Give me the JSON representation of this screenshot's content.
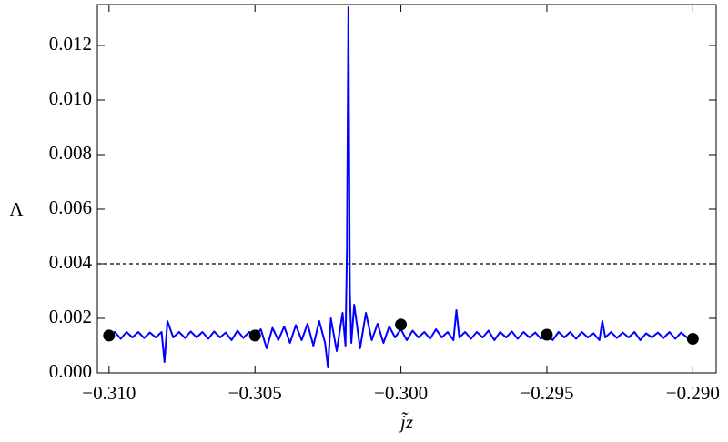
{
  "chart_data": {
    "type": "line",
    "x_label": "j̃z",
    "y_label": "Λ",
    "xlim": [
      -0.3104,
      -0.2892
    ],
    "ylim": [
      0,
      0.0135
    ],
    "xticks": [
      {
        "value": -0.31,
        "label": "−0.310"
      },
      {
        "value": -0.305,
        "label": "−0.305"
      },
      {
        "value": -0.3,
        "label": "−0.300"
      },
      {
        "value": -0.295,
        "label": "−0.295"
      },
      {
        "value": -0.29,
        "label": "−0.290"
      }
    ],
    "yticks": [
      {
        "value": 0,
        "label": "0.000"
      },
      {
        "value": 0.002,
        "label": "0.002"
      },
      {
        "value": 0.004,
        "label": "0.004"
      },
      {
        "value": 0.006,
        "label": "0.006"
      },
      {
        "value": 0.008,
        "label": "0.008"
      },
      {
        "value": 0.01,
        "label": "0.010"
      },
      {
        "value": 0.012,
        "label": "0.012"
      }
    ],
    "reference_line": {
      "y": 0.004,
      "color": "#000000"
    },
    "x": [
      -0.31,
      -0.3098,
      -0.3096,
      -0.3094,
      -0.3092,
      -0.309,
      -0.3088,
      -0.3086,
      -0.3084,
      -0.3082,
      -0.3081,
      -0.308,
      -0.3078,
      -0.3076,
      -0.3074,
      -0.3072,
      -0.307,
      -0.3068,
      -0.3066,
      -0.3064,
      -0.3062,
      -0.306,
      -0.3058,
      -0.3056,
      -0.3054,
      -0.3052,
      -0.305,
      -0.3048,
      -0.3046,
      -0.3044,
      -0.3042,
      -0.304,
      -0.3038,
      -0.3036,
      -0.3034,
      -0.3032,
      -0.303,
      -0.3028,
      -0.3026,
      -0.3025,
      -0.3024,
      -0.3022,
      -0.302,
      -0.3019,
      -0.30185,
      -0.3018,
      -0.30175,
      -0.3017,
      -0.3016,
      -0.3014,
      -0.3012,
      -0.301,
      -0.3008,
      -0.3006,
      -0.3004,
      -0.3002,
      -0.3,
      -0.2998,
      -0.2996,
      -0.2994,
      -0.2992,
      -0.299,
      -0.2988,
      -0.2986,
      -0.2984,
      -0.2982,
      -0.2981,
      -0.298,
      -0.2978,
      -0.2976,
      -0.2974,
      -0.2972,
      -0.297,
      -0.2968,
      -0.2966,
      -0.2964,
      -0.2962,
      -0.296,
      -0.2958,
      -0.2956,
      -0.2954,
      -0.2952,
      -0.295,
      -0.2948,
      -0.2946,
      -0.2944,
      -0.2942,
      -0.294,
      -0.2938,
      -0.2936,
      -0.2934,
      -0.2932,
      -0.2931,
      -0.293,
      -0.2928,
      -0.2926,
      -0.2924,
      -0.2922,
      -0.292,
      -0.2918,
      -0.2916,
      -0.2914,
      -0.2912,
      -0.291,
      -0.2908,
      -0.2906,
      -0.2904,
      -0.2902,
      -0.29
    ],
    "series": [
      {
        "color": "#0000ff",
        "values": [
          0.00135,
          0.0015,
          0.00125,
          0.0015,
          0.0013,
          0.0015,
          0.00128,
          0.00148,
          0.0013,
          0.0015,
          0.0004,
          0.0019,
          0.0013,
          0.0015,
          0.00128,
          0.00152,
          0.0013,
          0.0015,
          0.00125,
          0.00152,
          0.0013,
          0.00148,
          0.0012,
          0.00155,
          0.00128,
          0.0015,
          0.00135,
          0.0016,
          0.0009,
          0.00165,
          0.0012,
          0.0017,
          0.0011,
          0.00175,
          0.0012,
          0.0018,
          0.001,
          0.0019,
          0.0011,
          0.0002,
          0.002,
          0.0008,
          0.0022,
          0.001,
          0.0045,
          0.0134,
          0.003,
          0.0011,
          0.0025,
          0.0009,
          0.0022,
          0.0012,
          0.0018,
          0.0011,
          0.0017,
          0.0013,
          0.0016,
          0.0012,
          0.00155,
          0.0013,
          0.0015,
          0.00125,
          0.0016,
          0.0013,
          0.0015,
          0.0012,
          0.0023,
          0.0013,
          0.0015,
          0.00125,
          0.0015,
          0.0013,
          0.00155,
          0.0012,
          0.0015,
          0.0013,
          0.00152,
          0.00125,
          0.0015,
          0.0013,
          0.00148,
          0.00125,
          0.00145,
          0.0012,
          0.0015,
          0.0013,
          0.0015,
          0.00125,
          0.0015,
          0.0013,
          0.00145,
          0.0012,
          0.0019,
          0.0013,
          0.0015,
          0.00128,
          0.00148,
          0.0013,
          0.0015,
          0.0012,
          0.00145,
          0.0013,
          0.00148,
          0.00128,
          0.0015,
          0.00125,
          0.00148,
          0.0013,
          0.0013
        ]
      }
    ],
    "points": {
      "color": "#000000",
      "x": [
        -0.31,
        -0.305,
        -0.3,
        -0.295,
        -0.29
      ],
      "values": [
        0.00137,
        0.00137,
        0.00177,
        0.0014,
        0.00125
      ]
    }
  }
}
